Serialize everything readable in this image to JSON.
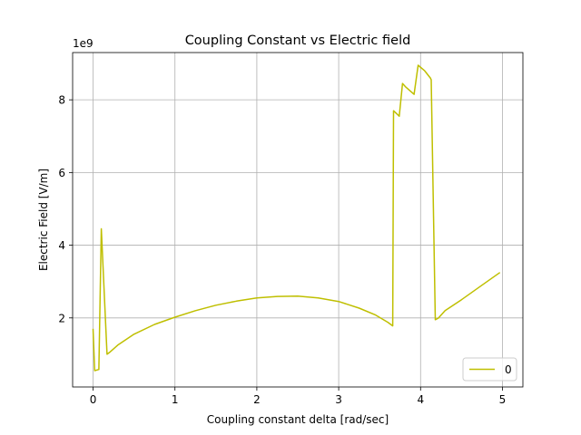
{
  "chart_data": {
    "type": "line",
    "title": "Coupling Constant vs Electric field",
    "xlabel": "Coupling constant delta [rad/sec]",
    "ylabel": "Electric Field [V/m]",
    "offset_text": "1e9",
    "xlim": [
      -0.25,
      5.25
    ],
    "ylim": [
      100000000.0,
      9300000000.0
    ],
    "x_ticks": [
      0,
      1,
      2,
      3,
      4,
      5
    ],
    "x_tick_labels": [
      "0",
      "1",
      "2",
      "3",
      "4",
      "5"
    ],
    "y_ticks": [
      2000000000.0,
      4000000000.0,
      6000000000.0,
      8000000000.0
    ],
    "y_tick_labels": [
      "2",
      "4",
      "6",
      "8"
    ],
    "grid": true,
    "legend_position": "lower-right",
    "series": [
      {
        "name": "0",
        "color": "#bfbf00",
        "x": [
          0.0,
          0.02,
          0.07,
          0.1,
          0.17,
          0.2,
          0.3,
          0.5,
          0.75,
          1.0,
          1.25,
          1.5,
          1.75,
          2.0,
          2.25,
          2.5,
          2.75,
          3.0,
          3.25,
          3.45,
          3.6,
          3.66,
          3.67,
          3.74,
          3.78,
          3.82,
          3.92,
          3.97,
          4.05,
          4.12,
          4.13,
          4.18,
          4.22,
          4.3,
          4.5,
          4.75,
          4.97
        ],
        "y": [
          1700000000.0,
          550000000.0,
          580000000.0,
          4450000000.0,
          1000000000.0,
          1050000000.0,
          1250000000.0,
          1550000000.0,
          1820000000.0,
          2020000000.0,
          2200000000.0,
          2350000000.0,
          2460000000.0,
          2550000000.0,
          2590000000.0,
          2600000000.0,
          2550000000.0,
          2450000000.0,
          2270000000.0,
          2080000000.0,
          1880000000.0,
          1780000000.0,
          7700000000.0,
          7550000000.0,
          8450000000.0,
          8350000000.0,
          8150000000.0,
          8950000000.0,
          8800000000.0,
          8600000000.0,
          8550000000.0,
          1950000000.0,
          2000000000.0,
          2200000000.0,
          2500000000.0,
          2900000000.0,
          3250000000.0
        ]
      }
    ]
  }
}
